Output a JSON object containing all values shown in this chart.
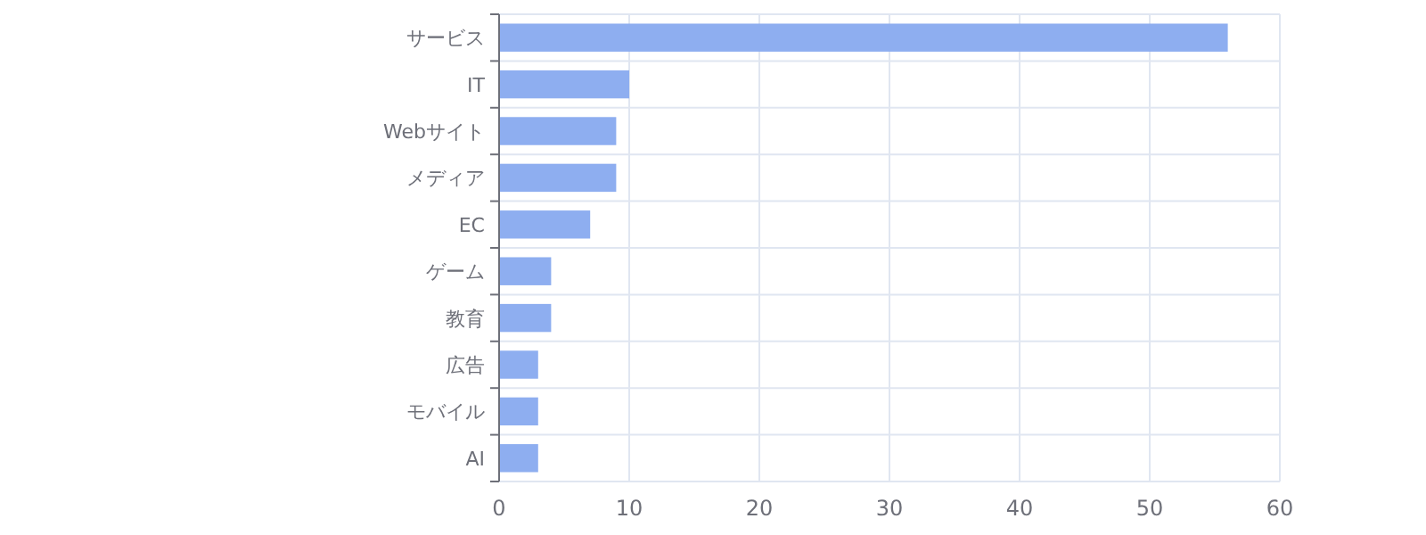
{
  "chart_data": {
    "type": "bar",
    "orientation": "horizontal",
    "categories": [
      "サービス",
      "IT",
      "Webサイト",
      "メディア",
      "EC",
      "ゲーム",
      "教育",
      "広告",
      "モバイル",
      "AI"
    ],
    "values": [
      56,
      10,
      9,
      9,
      7,
      4,
      4,
      3,
      3,
      3
    ],
    "color": "#8eaef0",
    "xlim": [
      0,
      60
    ],
    "xticks": [
      0,
      10,
      20,
      30,
      40,
      50,
      60
    ],
    "grid": true
  }
}
